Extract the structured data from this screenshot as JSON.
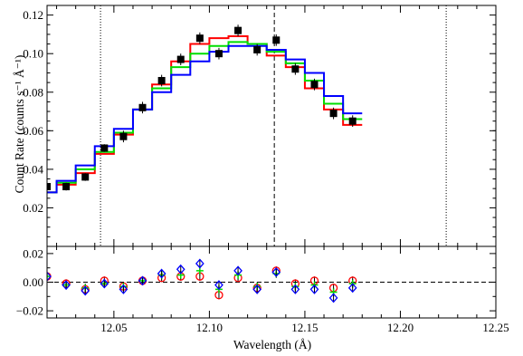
{
  "chart_data": {
    "type": "line",
    "title": "",
    "xlabel": "Wavelength (Å)",
    "ylabel": "Count Rate (counts s⁻¹ Å⁻¹)",
    "xlim": [
      12.015,
      12.25
    ],
    "top": {
      "ylim": [
        0.0,
        0.125
      ],
      "yticks": [
        0.02,
        0.04,
        0.06,
        0.08,
        0.1,
        0.12
      ],
      "ytick_labels": [
        "0.02",
        "0.04",
        "0.06",
        "0.08",
        "0.10",
        "0.12"
      ],
      "data": {
        "x": [
          12.015,
          12.025,
          12.035,
          12.045,
          12.055,
          12.065,
          12.075,
          12.085,
          12.095,
          12.105,
          12.115,
          12.125,
          12.135,
          12.145,
          12.155,
          12.165,
          12.175
        ],
        "y": [
          0.031,
          0.031,
          0.036,
          0.051,
          0.057,
          0.072,
          0.086,
          0.097,
          0.108,
          0.1,
          0.112,
          0.102,
          0.107,
          0.092,
          0.084,
          0.069,
          0.065
        ],
        "err": [
          0.002,
          0.002,
          0.002,
          0.002,
          0.003,
          0.003,
          0.003,
          0.003,
          0.003,
          0.003,
          0.003,
          0.003,
          0.003,
          0.003,
          0.003,
          0.003,
          0.003
        ]
      },
      "models": [
        {
          "color": "#ff0000",
          "edges": [
            12.015,
            12.02,
            12.03,
            12.04,
            12.05,
            12.06,
            12.07,
            12.08,
            12.09,
            12.1,
            12.11,
            12.12,
            12.13,
            12.14,
            12.15,
            12.16,
            12.17,
            12.18
          ],
          "values": [
            0.028,
            0.032,
            0.038,
            0.048,
            0.058,
            0.071,
            0.084,
            0.096,
            0.105,
            0.108,
            0.109,
            0.105,
            0.099,
            0.093,
            0.082,
            0.071,
            0.063
          ]
        },
        {
          "color": "#00dd00",
          "edges": [
            12.015,
            12.02,
            12.03,
            12.04,
            12.05,
            12.06,
            12.07,
            12.08,
            12.09,
            12.1,
            12.11,
            12.12,
            12.13,
            12.14,
            12.15,
            12.16,
            12.17,
            12.18
          ],
          "values": [
            0.028,
            0.033,
            0.04,
            0.049,
            0.059,
            0.071,
            0.082,
            0.093,
            0.1,
            0.104,
            0.106,
            0.105,
            0.101,
            0.095,
            0.086,
            0.074,
            0.066
          ]
        },
        {
          "color": "#0000ff",
          "edges": [
            12.015,
            12.02,
            12.03,
            12.04,
            12.05,
            12.06,
            12.07,
            12.08,
            12.09,
            12.1,
            12.11,
            12.12,
            12.13,
            12.14,
            12.15,
            12.16,
            12.17,
            12.18
          ],
          "values": [
            0.028,
            0.034,
            0.042,
            0.052,
            0.061,
            0.071,
            0.08,
            0.089,
            0.096,
            0.101,
            0.104,
            0.104,
            0.102,
            0.097,
            0.09,
            0.078,
            0.069
          ]
        }
      ],
      "vlines": [
        {
          "x": 12.043,
          "style": "dotted"
        },
        {
          "x": 12.134,
          "style": "dashed"
        },
        {
          "x": 12.224,
          "style": "dotted"
        }
      ]
    },
    "bottom": {
      "ylim": [
        -0.025,
        0.025
      ],
      "yticks": [
        -0.02,
        0.0,
        0.02
      ],
      "ytick_labels": [
        "−0.02",
        "0.00",
        "0.02"
      ],
      "zero_line": "dashed",
      "x": [
        12.015,
        12.025,
        12.035,
        12.045,
        12.055,
        12.065,
        12.075,
        12.085,
        12.095,
        12.105,
        12.115,
        12.125,
        12.135,
        12.145,
        12.155,
        12.165,
        12.175
      ],
      "series": [
        {
          "color": "#ff0000",
          "values": [
            0.004,
            -0.001,
            -0.005,
            0.001,
            -0.003,
            0.001,
            0.003,
            0.004,
            0.004,
            -0.009,
            0.003,
            -0.004,
            0.008,
            -0.001,
            0.001,
            -0.004,
            0.001
          ]
        },
        {
          "color": "#00dd00",
          "values": [
            0.004,
            -0.002,
            -0.004,
            -0.001,
            -0.003,
            0.001,
            0.005,
            0.005,
            0.008,
            -0.005,
            0.005,
            -0.003,
            0.006,
            -0.003,
            -0.002,
            -0.007,
            -0.001
          ]
        },
        {
          "color": "#0000ff",
          "values": [
            0.004,
            -0.002,
            -0.006,
            -0.001,
            -0.005,
            0.001,
            0.006,
            0.009,
            0.013,
            -0.002,
            0.008,
            -0.005,
            0.007,
            -0.005,
            -0.005,
            -0.011,
            -0.004
          ]
        }
      ],
      "err": 0.003
    },
    "xticks": [
      12.05,
      12.1,
      12.15,
      12.2,
      12.25
    ],
    "xtick_labels": [
      "12.05",
      "12.10",
      "12.15",
      "12.20",
      "12.25"
    ]
  }
}
